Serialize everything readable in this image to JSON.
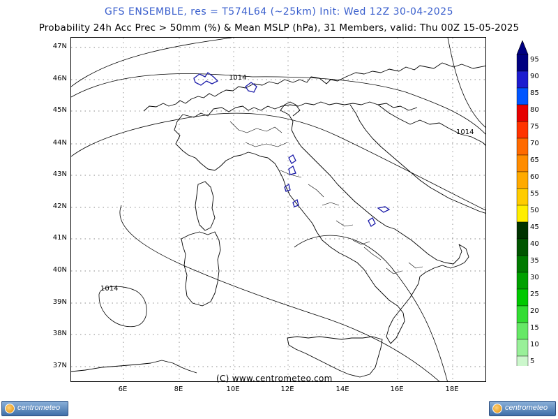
{
  "header": {
    "title": "GFS ENSEMBLE, res = T574L64 (~25km)   Init: Wed 12Z 30-04-2025",
    "subtitle": "Probability 24h Acc Prec > 50mm (%) & Mean MSLP (hPa), 31 Members, valid: Thu 00Z 15-05-2025"
  },
  "map": {
    "lat_labels": [
      "47N",
      "46N",
      "45N",
      "44N",
      "43N",
      "42N",
      "41N",
      "40N",
      "39N",
      "38N",
      "37N"
    ],
    "lon_labels": [
      "6E",
      "8E",
      "10E",
      "12E",
      "14E",
      "16E",
      "18E"
    ],
    "isobar_labels": [
      "1014",
      "1014",
      "1014"
    ],
    "copyright": "(C) www.centrometeo.com",
    "colors": {
      "precip_contour": "#1a1aa8",
      "land_border": "#000000",
      "grid": "#666666"
    }
  },
  "colorbar": {
    "labels": [
      "95",
      "90",
      "85",
      "80",
      "75",
      "70",
      "65",
      "60",
      "55",
      "50",
      "45",
      "40",
      "35",
      "30",
      "25",
      "20",
      "15",
      "10",
      "5"
    ],
    "colors": [
      "#000080",
      "#1c1ccf",
      "#0055ff",
      "#e60000",
      "#ff3300",
      "#ff6a00",
      "#ff8c00",
      "#ffaa00",
      "#ffcc00",
      "#ffee00",
      "#003300",
      "#005500",
      "#007a00",
      "#00a000",
      "#00c800",
      "#33dd33",
      "#66e866",
      "#99f099",
      "#ccf7cc"
    ]
  },
  "footer": {
    "logo_left": "centrometeo",
    "logo_right": "centrometeo"
  }
}
